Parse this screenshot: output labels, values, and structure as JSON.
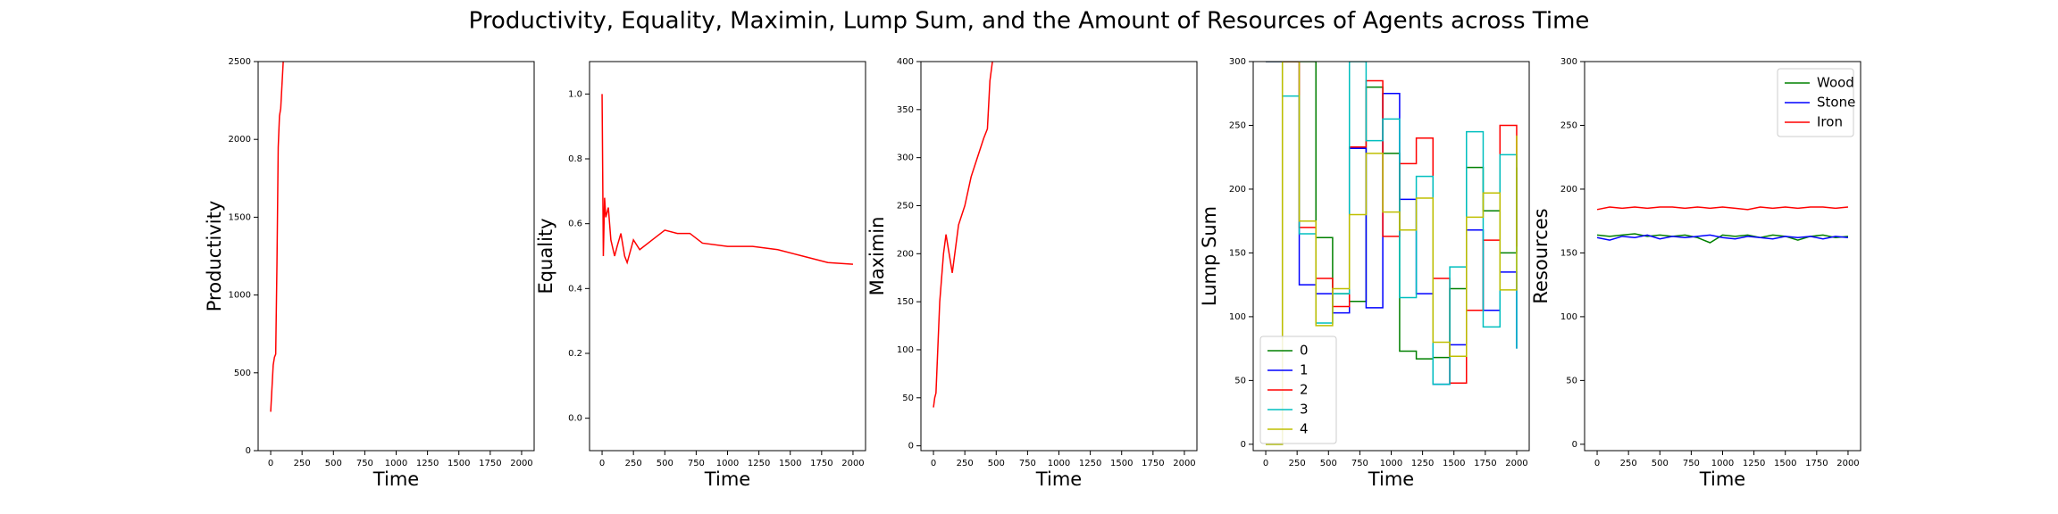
{
  "title": "Productivity, Equality, Maximin, Lump Sum, and the Amount of Resources of Agents across Time",
  "chart_data": [
    {
      "type": "line",
      "xlabel": "Time",
      "ylabel": "Productivity",
      "color": "#ff0000",
      "x": [
        0,
        10,
        20,
        30,
        40,
        50,
        60,
        70,
        80,
        90,
        100
      ],
      "values": [
        250,
        400,
        550,
        600,
        620,
        1200,
        1950,
        2150,
        2200,
        2350,
        2500
      ],
      "xlim": [
        -100,
        2100
      ],
      "ylim": [
        0,
        2500
      ],
      "xticks": [
        0,
        250,
        500,
        750,
        1000,
        1250,
        1500,
        1750,
        2000
      ],
      "yticks": [
        0,
        500,
        1000,
        1500,
        2000,
        2500
      ]
    },
    {
      "type": "line",
      "xlabel": "Time",
      "ylabel": "Equality",
      "color": "#ff0000",
      "x": [
        0,
        10,
        20,
        30,
        50,
        70,
        100,
        120,
        150,
        180,
        200,
        250,
        300,
        400,
        500,
        600,
        700,
        800,
        1000,
        1200,
        1400,
        1600,
        1800,
        2000
      ],
      "values": [
        1.0,
        0.5,
        0.68,
        0.62,
        0.65,
        0.55,
        0.5,
        0.53,
        0.57,
        0.5,
        0.48,
        0.55,
        0.52,
        0.55,
        0.58,
        0.57,
        0.57,
        0.54,
        0.53,
        0.53,
        0.52,
        0.5,
        0.48,
        0.475
      ],
      "xlim": [
        -100,
        2100
      ],
      "ylim": [
        -0.1,
        1.1
      ],
      "xticks": [
        0,
        250,
        500,
        750,
        1000,
        1250,
        1500,
        1750,
        2000
      ],
      "yticks": [
        {
          "value": 0,
          "label": "0.0"
        },
        0.2,
        0.4,
        0.6,
        0.8,
        {
          "value": 1,
          "label": "1.0"
        }
      ]
    },
    {
      "type": "line",
      "xlabel": "Time",
      "ylabel": "Maximin",
      "color": "#ff0000",
      "x": [
        0,
        10,
        20,
        50,
        80,
        100,
        150,
        200,
        250,
        300,
        350,
        400,
        430,
        450,
        470
      ],
      "values": [
        40,
        50,
        55,
        150,
        200,
        220,
        180,
        230,
        250,
        280,
        300,
        320,
        330,
        380,
        400
      ],
      "xlim": [
        -100,
        2100
      ],
      "ylim": [
        -5,
        400
      ],
      "xticks": [
        0,
        250,
        500,
        750,
        1000,
        1250,
        1500,
        1750,
        2000
      ],
      "yticks": [
        0,
        50,
        100,
        150,
        200,
        250,
        300,
        350,
        400
      ]
    },
    {
      "type": "line",
      "step": true,
      "xlabel": "Time",
      "ylabel": "Lump Sum",
      "legend": "lower left",
      "x": [
        0,
        133,
        267,
        400,
        533,
        667,
        800,
        933,
        1067,
        1200,
        1333,
        1467,
        1600,
        1733,
        1867,
        2000
      ],
      "series": [
        {
          "name": "0",
          "color": "#008000",
          "values": [
            0,
            300,
            300,
            162,
            118,
            112,
            280,
            228,
            73,
            67,
            68,
            122,
            217,
            183,
            150,
            217
          ]
        },
        {
          "name": "1",
          "color": "#0000ff",
          "values": [
            300,
            300,
            125,
            118,
            103,
            232,
            107,
            275,
            192,
            118,
            47,
            78,
            168,
            105,
            135,
            75
          ]
        },
        {
          "name": "2",
          "color": "#ff0000",
          "values": [
            300,
            300,
            170,
            130,
            108,
            233,
            285,
            163,
            220,
            240,
            130,
            48,
            105,
            160,
            250,
            155
          ]
        },
        {
          "name": "3",
          "color": "#00bfbf",
          "values": [
            300,
            273,
            165,
            95,
            118,
            300,
            238,
            255,
            115,
            210,
            47,
            139,
            245,
            92,
            227,
            75
          ]
        },
        {
          "name": "4",
          "color": "#bfbf00",
          "values": [
            0,
            300,
            175,
            93,
            122,
            180,
            228,
            182,
            168,
            193,
            80,
            69,
            178,
            197,
            121,
            242
          ]
        }
      ],
      "xlim": [
        -100,
        2100
      ],
      "ylim": [
        -5,
        300
      ],
      "xticks": [
        0,
        250,
        500,
        750,
        1000,
        1250,
        1500,
        1750,
        2000
      ],
      "yticks": [
        0,
        50,
        100,
        150,
        200,
        250,
        300
      ]
    },
    {
      "type": "line",
      "xlabel": "Time",
      "ylabel": "Resources",
      "legend": "upper right",
      "x": [
        0,
        100,
        200,
        300,
        400,
        500,
        600,
        700,
        800,
        900,
        1000,
        1100,
        1200,
        1300,
        1400,
        1500,
        1600,
        1700,
        1800,
        1900,
        2000
      ],
      "series": [
        {
          "name": "Wood",
          "color": "#008000",
          "values": [
            164,
            163,
            164,
            165,
            163,
            164,
            163,
            164,
            162,
            158,
            164,
            163,
            164,
            162,
            164,
            163,
            160,
            163,
            164,
            162,
            163
          ]
        },
        {
          "name": "Stone",
          "color": "#0000ff",
          "values": [
            162,
            160,
            163,
            162,
            164,
            161,
            163,
            162,
            163,
            164,
            162,
            161,
            163,
            162,
            161,
            163,
            162,
            163,
            161,
            163,
            162
          ]
        },
        {
          "name": "Iron",
          "color": "#ff0000",
          "values": [
            184,
            186,
            185,
            186,
            185,
            186,
            186,
            185,
            186,
            185,
            186,
            185,
            184,
            186,
            185,
            186,
            185,
            186,
            186,
            185,
            186
          ]
        }
      ],
      "xlim": [
        -100,
        2100
      ],
      "ylim": [
        -5,
        300
      ],
      "xticks": [
        0,
        250,
        500,
        750,
        1000,
        1250,
        1500,
        1750,
        2000
      ],
      "yticks": [
        0,
        50,
        100,
        150,
        200,
        250,
        300
      ]
    }
  ]
}
